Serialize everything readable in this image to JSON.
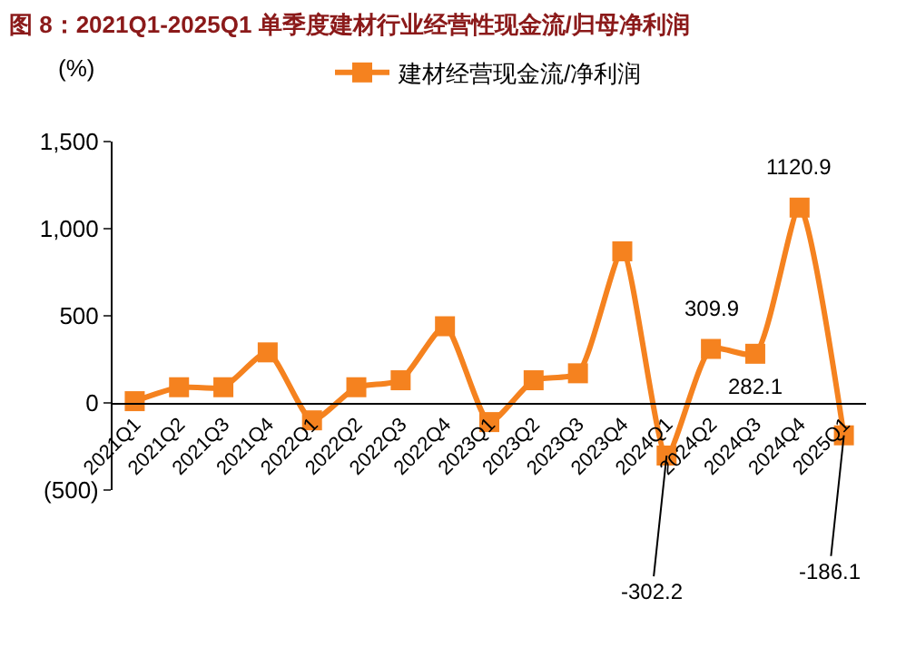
{
  "chart_data": {
    "type": "line",
    "title": "图 8：2021Q1-2025Q1 单季度建材行业经营性现金流/归母净利润",
    "ylabel": "(%)",
    "categories": [
      "2021Q1",
      "2021Q2",
      "2021Q3",
      "2021Q4",
      "2022Q1",
      "2022Q2",
      "2022Q3",
      "2022Q4",
      "2023Q1",
      "2023Q2",
      "2023Q3",
      "2023Q4",
      "2024Q1",
      "2024Q2",
      "2024Q3",
      "2024Q4",
      "2025Q1"
    ],
    "series": [
      {
        "name": "建材经营现金流/净利润",
        "color": "#f5821f",
        "values": [
          10,
          90,
          90,
          290,
          -100,
          90,
          130,
          440,
          -110,
          130,
          170,
          870,
          -302.2,
          309.9,
          282.1,
          1120.9,
          -186.1
        ],
        "value_labels": [
          null,
          null,
          null,
          null,
          null,
          null,
          null,
          null,
          null,
          null,
          null,
          null,
          "-302.2",
          "309.9",
          "282.1",
          "1120.9",
          "-186.1"
        ]
      }
    ],
    "ylim": [
      -500,
      1500
    ],
    "yticks": [
      {
        "value": -500,
        "label": "(500)"
      },
      0,
      500,
      {
        "value": 1000,
        "label": "1,000"
      },
      {
        "value": 1500,
        "label": "1,500"
      }
    ],
    "grid": false,
    "legend": "top",
    "marker": "square",
    "line_style": "solid"
  }
}
